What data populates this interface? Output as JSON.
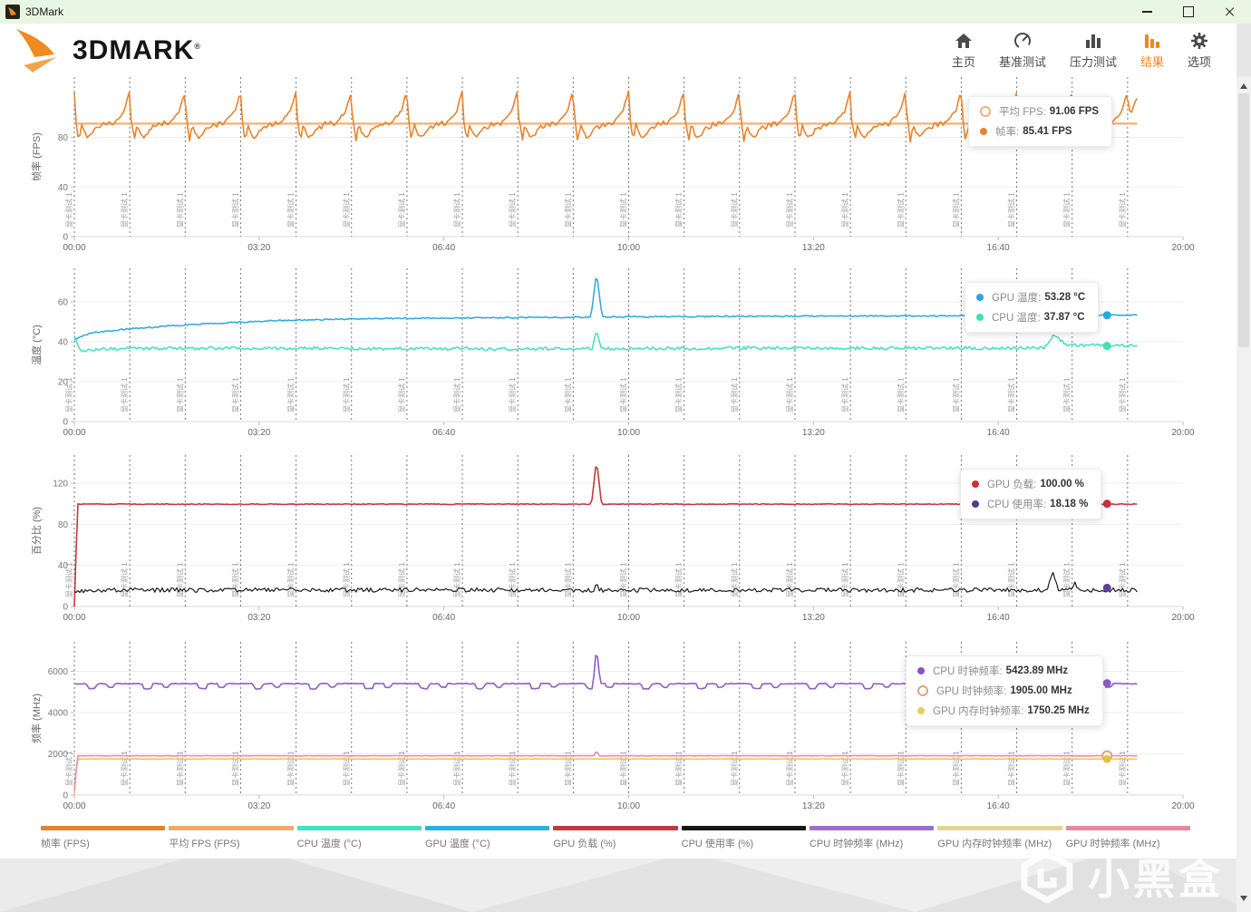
{
  "window": {
    "title": "3DMark"
  },
  "header": {
    "brand": "3DMARK",
    "brand_reg": "®",
    "nav": [
      {
        "label": "主页",
        "icon": "home-icon",
        "active": false
      },
      {
        "label": "基准测试",
        "icon": "benchmark-gauge-icon",
        "active": false
      },
      {
        "label": "压力测试",
        "icon": "stress-test-icon",
        "active": false
      },
      {
        "label": "结果",
        "icon": "results-icon",
        "active": true
      },
      {
        "label": "选项",
        "icon": "gear-icon",
        "active": false
      }
    ]
  },
  "colors": {
    "accent": "#f0861f",
    "titlebar": "#e9f6e3",
    "panel": "#ffffff"
  },
  "watermark": {
    "text": "小黑盒"
  },
  "chart_data": [
    {
      "type": "line",
      "ylabel": "帧率 (FPS)",
      "ylim": [
        0,
        128
      ],
      "yticks": [
        0,
        40,
        80
      ],
      "xticks": [
        "00:00",
        "03:20",
        "06:40",
        "10:00",
        "13:20",
        "16:40",
        "20:00"
      ],
      "x_range_minutes": [
        0,
        20
      ],
      "test_marker_label": "显卡测试 1",
      "test_marker_count": 20,
      "series": [
        {
          "name": "平均 FPS",
          "color": "#F3B077",
          "width": 2.2,
          "flat": 91.06
        },
        {
          "name": "帧率",
          "color": "#E8832C",
          "width": 1.6,
          "noise": 1.1,
          "cycle": [
            [
              0,
              117
            ],
            [
              0.02,
              95
            ],
            [
              0.05,
              88
            ],
            [
              0.08,
              76
            ],
            [
              0.13,
              91
            ],
            [
              0.18,
              84
            ],
            [
              0.24,
              80
            ],
            [
              0.3,
              82
            ],
            [
              0.36,
              86
            ],
            [
              0.42,
              89
            ],
            [
              0.47,
              87
            ],
            [
              0.52,
              92
            ],
            [
              0.57,
              89
            ],
            [
              0.63,
              93
            ],
            [
              0.68,
              90
            ],
            [
              0.75,
              94
            ],
            [
              0.82,
              97
            ],
            [
              0.9,
              101
            ],
            [
              0.96,
              112
            ]
          ],
          "events": [
            {
              "t": 19.18,
              "v": 112,
              "w": 0.3
            }
          ]
        }
      ],
      "markers": [
        {
          "value": 91.06,
          "style": "ring",
          "color": "#E8832C"
        },
        {
          "value": 85.41,
          "style": "dot",
          "color": "#E8832C"
        }
      ],
      "tooltip": {
        "rows": [
          {
            "dot_color": "#F3B077",
            "dot_style": "ring",
            "label": "平均 FPS:",
            "value": "91.06 FPS"
          },
          {
            "dot_color": "#E8832C",
            "dot_style": "dot",
            "label": "帧率:",
            "value": "85.41 FPS"
          }
        ]
      }
    },
    {
      "type": "line",
      "ylabel": "温度 (°C)",
      "ylim": [
        0,
        78
      ],
      "yticks": [
        0,
        20,
        40,
        60
      ],
      "xticks": [
        "00:00",
        "03:20",
        "06:40",
        "10:00",
        "13:20",
        "16:40",
        "20:00"
      ],
      "x_range_minutes": [
        0,
        20
      ],
      "test_marker_label": "显卡测试 1",
      "test_marker_count": 20,
      "series": [
        {
          "name": "GPU 温度",
          "color": "#29A8E0",
          "width": 1.5,
          "noise": 0.35,
          "points": [
            [
              0,
              41
            ],
            [
              0.3,
              44.5
            ],
            [
              1,
              46.5
            ],
            [
              2,
              48.5
            ],
            [
              3.5,
              50.5
            ],
            [
              5,
              51.5
            ],
            [
              7,
              52
            ],
            [
              9,
              52.3
            ],
            [
              12,
              52.8
            ],
            [
              16,
              53
            ],
            [
              19.2,
              53.3
            ]
          ],
          "events": [
            {
              "t": 9.42,
              "v": 75,
              "w": 0.1
            }
          ]
        },
        {
          "name": "CPU 温度",
          "color": "#3FE0B8",
          "width": 1.5,
          "noise": 0.8,
          "points": [
            [
              0,
              43.5
            ],
            [
              0.1,
              35.5
            ],
            [
              0.6,
              36.5
            ],
            [
              3,
              36.8
            ],
            [
              8,
              36.4
            ],
            [
              12,
              36.8
            ],
            [
              17.5,
              36.8
            ],
            [
              17.68,
              43.5
            ],
            [
              17.9,
              38.5
            ],
            [
              19.2,
              37.8
            ]
          ],
          "events": [
            {
              "t": 9.42,
              "v": 46,
              "w": 0.08
            }
          ]
        }
      ],
      "markers": [
        {
          "value": 53.28,
          "style": "dot",
          "color": "#29A8E0"
        },
        {
          "value": 37.87,
          "style": "dot",
          "color": "#3FE0B8"
        }
      ],
      "tooltip": {
        "rows": [
          {
            "dot_color": "#29A8E0",
            "dot_style": "dot",
            "label": "GPU 温度:",
            "value": "53.28 °C"
          },
          {
            "dot_color": "#3FE0B8",
            "dot_style": "dot",
            "label": "CPU 温度:",
            "value": "37.87 °C"
          }
        ]
      }
    },
    {
      "type": "line",
      "ylabel": "百分比 (%)",
      "ylim": [
        0,
        150
      ],
      "yticks": [
        0,
        40,
        80,
        120
      ],
      "xticks": [
        "00:00",
        "03:20",
        "06:40",
        "10:00",
        "13:20",
        "16:40",
        "20:00"
      ],
      "x_range_minutes": [
        0,
        20
      ],
      "test_marker_label": "显卡测试 1",
      "test_marker_count": 20,
      "series": [
        {
          "name": "GPU 负载",
          "color": "#C13A3E",
          "width": 1.6,
          "noise": 0.4,
          "points": [
            [
              0,
              0
            ],
            [
              0.06,
              99.6
            ],
            [
              19.2,
              99.6
            ]
          ],
          "events": [
            {
              "t": 9.42,
              "v": 143,
              "w": 0.09
            }
          ]
        },
        {
          "name": "CPU 使用率",
          "color": "#1B1B1B",
          "width": 1.2,
          "noise": 2.1,
          "points": [
            [
              0,
              13
            ],
            [
              0.25,
              16
            ],
            [
              19.2,
              16
            ]
          ],
          "events": [
            {
              "t": 9.42,
              "v": 23,
              "w": 0.05
            },
            {
              "t": 17.65,
              "v": 34,
              "w": 0.1
            },
            {
              "t": 18.05,
              "v": 24,
              "w": 0.05
            }
          ]
        }
      ],
      "markers": [
        {
          "value": 100,
          "style": "dot",
          "color": "#C9303C"
        },
        {
          "value": 18.18,
          "style": "dot",
          "color": "#5D3E9E"
        }
      ],
      "tooltip": {
        "rows": [
          {
            "dot_color": "#CC2F35",
            "dot_style": "dot",
            "label": "GPU 负载:",
            "value": "100.00 %"
          },
          {
            "dot_color": "#4E3A93",
            "dot_style": "dot",
            "label": "CPU 使用率:",
            "value": "18.18 %"
          }
        ]
      }
    },
    {
      "type": "line",
      "ylabel": "频率 (MHz)",
      "ylim": [
        0,
        7700
      ],
      "yticks": [
        0,
        2000,
        4000,
        6000
      ],
      "xticks": [
        "00:00",
        "03:20",
        "06:40",
        "10:00",
        "13:20",
        "16:40",
        "20:00"
      ],
      "x_range_minutes": [
        0,
        20
      ],
      "test_marker_label": "显卡测试 1",
      "test_marker_count": 20,
      "series": [
        {
          "name": "GPU 内存时钟频率",
          "color": "#E2C24A",
          "width": 1.4,
          "noise": 6,
          "points": [
            [
              0,
              0
            ],
            [
              0.05,
              1750
            ],
            [
              19.2,
              1750
            ]
          ]
        },
        {
          "name": "GPU 时钟频率",
          "color": "#EE8CA3",
          "width": 1.6,
          "noise": 9,
          "points": [
            [
              0,
              250
            ],
            [
              0.06,
              1905
            ],
            [
              19.2,
              1905
            ]
          ],
          "events": [
            {
              "t": 9.42,
              "v": 2150,
              "w": 0.05
            }
          ]
        },
        {
          "name": "CPU 时钟频率",
          "color": "#8E5FC6",
          "width": 1.6,
          "noise": 20,
          "cycle": [
            [
              0,
              5400
            ],
            [
              0.22,
              5400
            ],
            [
              0.25,
              5160
            ],
            [
              0.38,
              5160
            ],
            [
              0.41,
              5400
            ],
            [
              0.58,
              5400
            ],
            [
              0.61,
              5230
            ],
            [
              0.7,
              5230
            ],
            [
              0.73,
              5400
            ],
            [
              1,
              5400
            ]
          ],
          "events": [
            {
              "t": 9.42,
              "v": 7150,
              "w": 0.07
            }
          ]
        }
      ],
      "markers": [
        {
          "value": 5423.89,
          "style": "dot",
          "color": "#8E5FC6"
        },
        {
          "value": 1905,
          "style": "ring",
          "color": "#E0A673"
        },
        {
          "value": 1750,
          "style": "dot",
          "color": "#E2C24A"
        }
      ],
      "tooltip": {
        "rows": [
          {
            "dot_color": "#8C52BE",
            "dot_style": "dot",
            "label": "CPU 时钟频率:",
            "value": "5423.89 MHz"
          },
          {
            "dot_color": "#E0A673",
            "dot_style": "ring",
            "label": "GPU 时钟频率:",
            "value": "1905.00 MHz"
          },
          {
            "dot_color": "#E6CC66",
            "dot_style": "dot",
            "label": "GPU 内存时钟频率:",
            "value": "1750.25 MHz"
          }
        ]
      }
    }
  ],
  "legend": [
    {
      "label": "帧率 (FPS)",
      "color": "#E2832E"
    },
    {
      "label": "平均 FPS (FPS)",
      "color": "#EFA96B"
    },
    {
      "label": "CPU 温度 (°C)",
      "color": "#3FE3C1"
    },
    {
      "label": "GPU 温度 (°C)",
      "color": "#29B2E3"
    },
    {
      "label": "GPU 负载 (%)",
      "color": "#BF3B3F"
    },
    {
      "label": "CPU 使用率 (%)",
      "color": "#161616"
    },
    {
      "label": "CPU 时钟频率 (MHz)",
      "color": "#9C70C9"
    },
    {
      "label": "GPU 内存时钟频率 (MHz)",
      "color": "#E3D391"
    },
    {
      "label": "GPU 时钟频率 (MHz)",
      "color": "#E8879E"
    }
  ]
}
